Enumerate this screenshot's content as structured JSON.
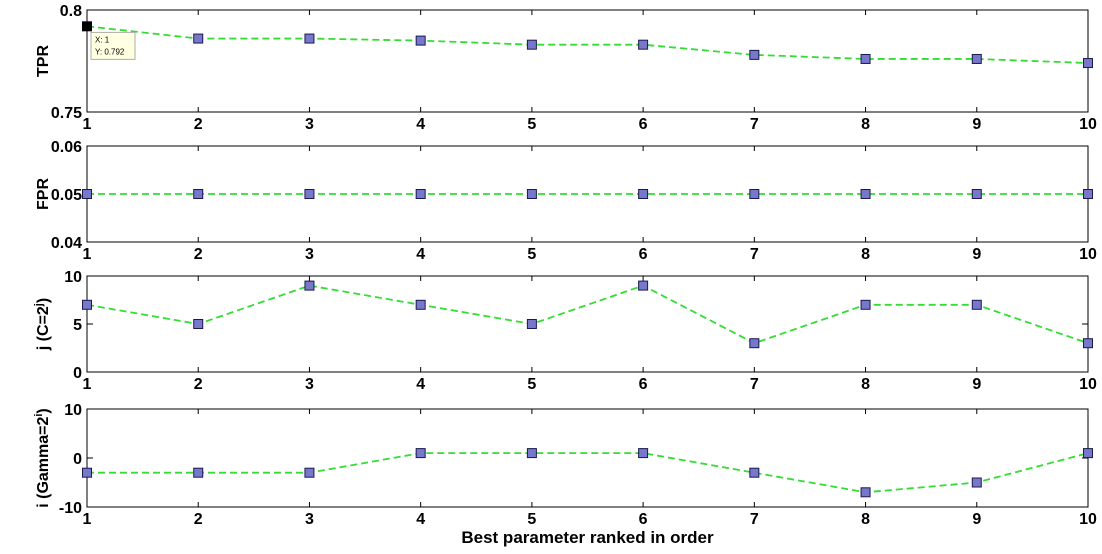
{
  "chart_data": {
    "type": "line",
    "xlabel": "Best parameter ranked in order",
    "x": [
      1,
      2,
      3,
      4,
      5,
      6,
      7,
      8,
      9,
      10
    ],
    "xticks": [
      "1",
      "2",
      "3",
      "4",
      "5",
      "6",
      "7",
      "8",
      "9",
      "10"
    ],
    "colors": {
      "line": "#33dd33",
      "marker_fill": "#7777cc",
      "marker_edge": "#1a1a4d",
      "tooltip_bg": "#ffffe1"
    },
    "subplots": [
      {
        "id": "tpr",
        "ylabel": "TPR",
        "ylim": [
          0.75,
          0.8
        ],
        "yticks": [
          "0.75",
          "0.8"
        ],
        "ytick_values": [
          0.75,
          0.8
        ],
        "values": [
          0.792,
          0.786,
          0.786,
          0.785,
          0.783,
          0.783,
          0.778,
          0.776,
          0.776,
          0.774
        ]
      },
      {
        "id": "fpr",
        "ylabel": "FPR",
        "ylim": [
          0.04,
          0.06
        ],
        "yticks": [
          "0.04",
          "0.05",
          "0.06"
        ],
        "ytick_values": [
          0.04,
          0.05,
          0.06
        ],
        "values": [
          0.05,
          0.05,
          0.05,
          0.05,
          0.05,
          0.05,
          0.05,
          0.05,
          0.05,
          0.05
        ]
      },
      {
        "id": "c",
        "ylabel_main": "j (C=2",
        "ylabel_sup": "j",
        "ylabel_close": ")",
        "ylim": [
          0,
          10
        ],
        "yticks": [
          "0",
          "5",
          "10"
        ],
        "ytick_values": [
          0,
          5,
          10
        ],
        "values": [
          7,
          5,
          9,
          7,
          5,
          9,
          3,
          7,
          7,
          3
        ]
      },
      {
        "id": "gamma",
        "ylabel_main": "i (Gamma=2",
        "ylabel_sup": "i",
        "ylabel_close": ")",
        "ylim": [
          -10,
          10
        ],
        "yticks": [
          "-10",
          "0",
          "10"
        ],
        "ytick_values": [
          -10,
          0,
          10
        ],
        "values": [
          -3,
          -3,
          -3,
          1,
          1,
          1,
          -3,
          -7,
          -5,
          1
        ]
      }
    ],
    "annotation": {
      "subplot": 0,
      "point_index": 0,
      "line1": "X: 1",
      "line2": "Y: 0.792"
    }
  }
}
